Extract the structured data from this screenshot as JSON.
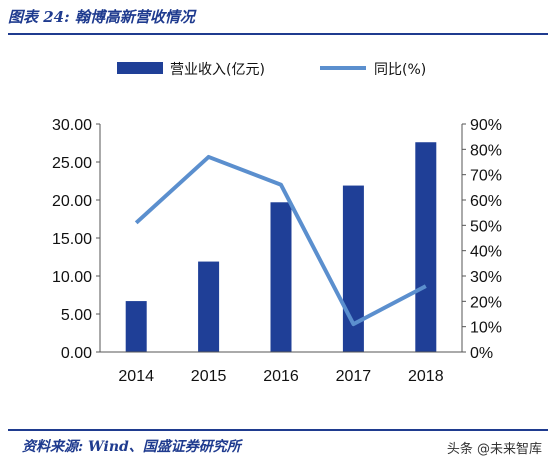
{
  "header": {
    "title": "图表 24: 翰博高新营收情况"
  },
  "footer": {
    "source": "资料来源: Wind、国盛证券研究所",
    "watermark": "头条 @未来智库"
  },
  "colors": {
    "bar": "#1f3f97",
    "line": "#5b8fce",
    "text": "#1f3b8f"
  },
  "chart_data": {
    "type": "bar",
    "categories": [
      "2014",
      "2015",
      "2016",
      "2017",
      "2018"
    ],
    "series": [
      {
        "name": "营业收入(亿元)",
        "type": "bar",
        "axis": "left",
        "values": [
          6.7,
          11.9,
          19.7,
          21.9,
          27.6
        ]
      },
      {
        "name": "同比(%)",
        "type": "line",
        "axis": "right",
        "values": [
          51,
          77,
          66,
          11,
          26
        ]
      }
    ],
    "ylim_left": [
      0,
      30
    ],
    "yticks_left": [
      "0.00",
      "5.00",
      "10.00",
      "15.00",
      "20.00",
      "25.00",
      "30.00"
    ],
    "ylim_right": [
      0,
      90
    ],
    "yticks_right": [
      "0%",
      "10%",
      "20%",
      "30%",
      "40%",
      "50%",
      "60%",
      "70%",
      "80%",
      "90%"
    ],
    "legend_position": "top-center",
    "grid": false
  }
}
